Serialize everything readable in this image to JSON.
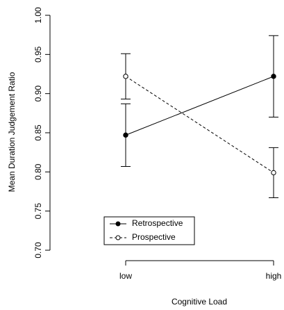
{
  "chart_data": {
    "type": "line",
    "x_label": "Cognitive Load",
    "y_label": "Mean Duration Judgement Ratio",
    "categories": [
      "low",
      "high"
    ],
    "series": [
      {
        "name": "Retrospective",
        "color": "#000000",
        "dashed": false,
        "marker": "filled",
        "values": [
          0.847,
          0.922
        ],
        "errors": [
          0.04,
          0.052
        ]
      },
      {
        "name": "Prospective",
        "color": "#000000",
        "dashed": true,
        "marker": "open",
        "values": [
          0.922,
          0.799
        ],
        "errors": [
          0.029,
          0.032
        ]
      }
    ],
    "ylim": [
      0.7,
      1.0
    ],
    "yticks": [
      {
        "value": 0.7,
        "label": "0.70"
      },
      0.75,
      {
        "value": 0.8,
        "label": "0.80"
      },
      0.85,
      {
        "value": 0.9,
        "label": "0.90"
      },
      0.95,
      {
        "value": 1.0,
        "label": "1.00"
      }
    ],
    "legend": "bottom-left"
  }
}
